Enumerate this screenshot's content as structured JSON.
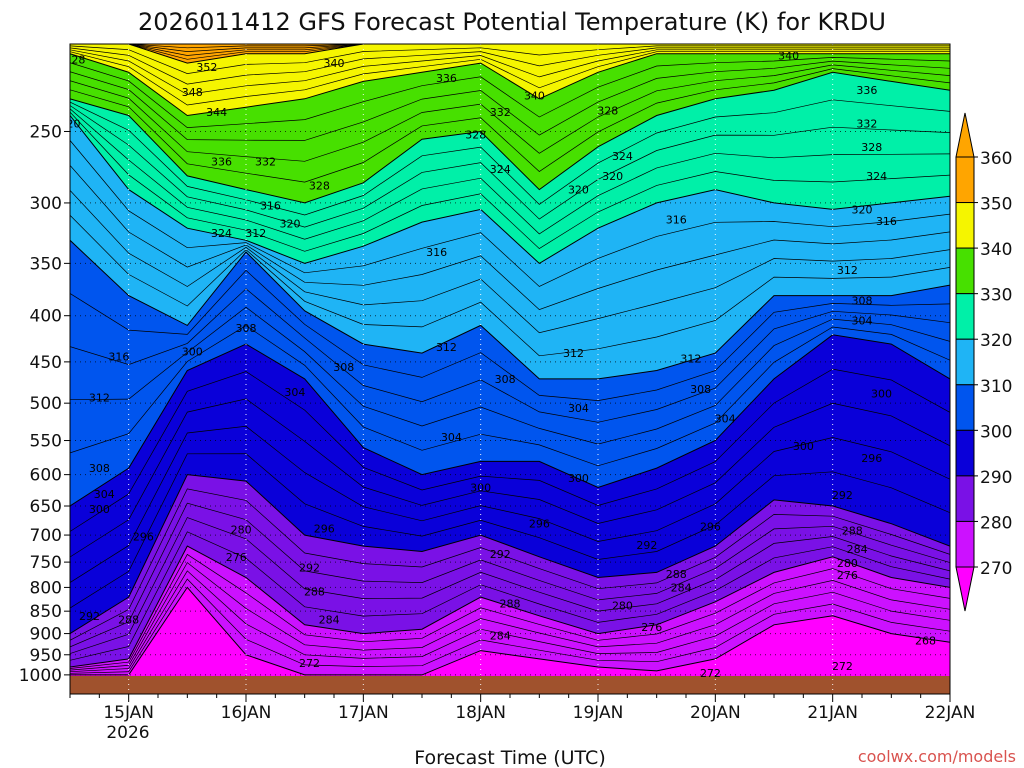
{
  "chart_data": {
    "type": "contour",
    "title": "2026011412 GFS Forecast Potential Temperature (K) for KRDU",
    "xlabel": "Forecast Time (UTC)",
    "ylabel": "",
    "credit": "coolwx.com/models",
    "pressure_ticks": [
      "250",
      "300",
      "350",
      "400",
      "450",
      "500",
      "550",
      "600",
      "650",
      "700",
      "750",
      "800",
      "850",
      "900",
      "950",
      "1000"
    ],
    "pressure_values": [
      250,
      300,
      350,
      400,
      450,
      500,
      550,
      600,
      650,
      700,
      750,
      800,
      850,
      900,
      950,
      1000
    ],
    "time_ticks": [
      "15JAN",
      "16JAN",
      "17JAN",
      "18JAN",
      "19JAN",
      "20JAN",
      "21JAN",
      "22JAN"
    ],
    "time_values_hours": [
      12,
      36,
      60,
      84,
      108,
      132,
      156,
      180
    ],
    "time_start_hour": 0,
    "time_end_hour": 180,
    "year_label": "2026",
    "colorbar_labels": [
      "270",
      "280",
      "290",
      "300",
      "310",
      "320",
      "330",
      "340",
      "350",
      "360"
    ],
    "colorbar_levels": [
      270,
      280,
      290,
      300,
      310,
      320,
      330,
      340,
      350,
      360
    ],
    "colorbar_colors": [
      "#ff00ff",
      "#cc11ff",
      "#7a11e6",
      "#0a00d9",
      "#0055ee",
      "#1fb4f5",
      "#00f0a8",
      "#47e000",
      "#f5f500",
      "#ffa500"
    ],
    "color_bands": [
      {
        "level": 360,
        "color": "#ffa500",
        "press": [
          200,
          200,
          200,
          200,
          200,
          200,
          200,
          200,
          200,
          200,
          200,
          200,
          200,
          200,
          200,
          200
        ]
      },
      {
        "level": 350,
        "color": "#f5f500",
        "press": [
          200,
          200,
          210,
          205,
          205,
          200,
          200,
          200,
          200,
          200,
          200,
          200,
          200,
          200,
          200,
          200
        ]
      },
      {
        "level": 340,
        "color": "#47e000",
        "press": [
          205,
          215,
          240,
          235,
          230,
          220,
          215,
          210,
          230,
          215,
          205,
          205,
          205,
          205,
          205,
          205
        ]
      },
      {
        "level": 330,
        "color": "#00f0a8",
        "press": [
          230,
          240,
          280,
          290,
          300,
          285,
          255,
          250,
          290,
          260,
          240,
          230,
          225,
          215,
          220,
          225
        ]
      },
      {
        "level": 320,
        "color": "#1fb4f5",
        "press": [
          240,
          290,
          320,
          330,
          350,
          335,
          315,
          305,
          350,
          320,
          300,
          290,
          300,
          305,
          300,
          295
        ]
      },
      {
        "level": 310,
        "color": "#0055ee",
        "press": [
          330,
          380,
          410,
          340,
          395,
          430,
          440,
          410,
          470,
          470,
          460,
          440,
          380,
          380,
          380,
          370
        ]
      },
      {
        "level": 300,
        "color": "#0a00d9",
        "press": [
          650,
          590,
          460,
          430,
          470,
          560,
          600,
          580,
          580,
          620,
          590,
          550,
          470,
          420,
          430,
          470
        ]
      },
      {
        "level": 290,
        "color": "#7a11e6",
        "press": [
          900,
          820,
          600,
          610,
          700,
          720,
          730,
          700,
          740,
          780,
          770,
          720,
          640,
          650,
          680,
          720
        ]
      },
      {
        "level": 280,
        "color": "#cc11ff",
        "press": [
          980,
          960,
          720,
          780,
          880,
          900,
          890,
          820,
          860,
          900,
          880,
          830,
          770,
          740,
          780,
          800
        ]
      },
      {
        "level": 270,
        "color": "#ff00ff",
        "press": [
          1000,
          1000,
          800,
          950,
          1000,
          1000,
          1000,
          940,
          960,
          980,
          990,
          960,
          880,
          860,
          900,
          920
        ]
      }
    ],
    "contour_labels": [
      {
        "text": "328",
        "t": 1,
        "p": 208
      },
      {
        "text": "352",
        "t": 28,
        "p": 212
      },
      {
        "text": "348",
        "t": 25,
        "p": 226
      },
      {
        "text": "344",
        "t": 30,
        "p": 238
      },
      {
        "text": "340",
        "t": 54,
        "p": 210
      },
      {
        "text": "336",
        "t": 77,
        "p": 218
      },
      {
        "text": "332",
        "t": 88,
        "p": 238
      },
      {
        "text": "340",
        "t": 95,
        "p": 228
      },
      {
        "text": "328",
        "t": 83,
        "p": 252
      },
      {
        "text": "328",
        "t": 110,
        "p": 237
      },
      {
        "text": "324",
        "t": 113,
        "p": 266
      },
      {
        "text": "320",
        "t": 111,
        "p": 280
      },
      {
        "text": "340",
        "t": 147,
        "p": 206
      },
      {
        "text": "336",
        "t": 163,
        "p": 225
      },
      {
        "text": "332",
        "t": 163,
        "p": 245
      },
      {
        "text": "328",
        "t": 164,
        "p": 260
      },
      {
        "text": "324",
        "t": 165,
        "p": 280
      },
      {
        "text": "320",
        "t": 0,
        "p": 245
      },
      {
        "text": "336",
        "t": 31,
        "p": 270
      },
      {
        "text": "332",
        "t": 40,
        "p": 270
      },
      {
        "text": "328",
        "t": 51,
        "p": 287
      },
      {
        "text": "324",
        "t": 88,
        "p": 275
      },
      {
        "text": "320",
        "t": 104,
        "p": 290
      },
      {
        "text": "316",
        "t": 41,
        "p": 302
      },
      {
        "text": "320",
        "t": 45,
        "p": 316
      },
      {
        "text": "324",
        "t": 31,
        "p": 324
      },
      {
        "text": "312",
        "t": 38,
        "p": 324
      },
      {
        "text": "316",
        "t": 75,
        "p": 340
      },
      {
        "text": "316",
        "t": 124,
        "p": 313
      },
      {
        "text": "320",
        "t": 162,
        "p": 305
      },
      {
        "text": "316",
        "t": 167,
        "p": 314
      },
      {
        "text": "312",
        "t": 159,
        "p": 356
      },
      {
        "text": "308",
        "t": 36,
        "p": 413
      },
      {
        "text": "312",
        "t": 77,
        "p": 433
      },
      {
        "text": "312",
        "t": 103,
        "p": 440
      },
      {
        "text": "308",
        "t": 56,
        "p": 456
      },
      {
        "text": "308",
        "t": 89,
        "p": 470
      },
      {
        "text": "312",
        "t": 127,
        "p": 446
      },
      {
        "text": "316",
        "t": 10,
        "p": 444
      },
      {
        "text": "300",
        "t": 25,
        "p": 438
      },
      {
        "text": "308",
        "t": 162,
        "p": 385
      },
      {
        "text": "304",
        "t": 162,
        "p": 405
      },
      {
        "text": "312",
        "t": 6,
        "p": 493
      },
      {
        "text": "304",
        "t": 46,
        "p": 486
      },
      {
        "text": "304",
        "t": 104,
        "p": 506
      },
      {
        "text": "308",
        "t": 129,
        "p": 482
      },
      {
        "text": "304",
        "t": 134,
        "p": 520
      },
      {
        "text": "304",
        "t": 78,
        "p": 545
      },
      {
        "text": "300",
        "t": 150,
        "p": 558
      },
      {
        "text": "296",
        "t": 164,
        "p": 575
      },
      {
        "text": "300",
        "t": 166,
        "p": 488
      },
      {
        "text": "308",
        "t": 6,
        "p": 590
      },
      {
        "text": "304",
        "t": 7,
        "p": 630
      },
      {
        "text": "300",
        "t": 6,
        "p": 655
      },
      {
        "text": "300",
        "t": 84,
        "p": 620
      },
      {
        "text": "300",
        "t": 104,
        "p": 605
      },
      {
        "text": "292",
        "t": 158,
        "p": 632
      },
      {
        "text": "296",
        "t": 15,
        "p": 703
      },
      {
        "text": "280",
        "t": 35,
        "p": 690
      },
      {
        "text": "296",
        "t": 52,
        "p": 688
      },
      {
        "text": "296",
        "t": 96,
        "p": 680
      },
      {
        "text": "296",
        "t": 131,
        "p": 685
      },
      {
        "text": "288",
        "t": 160,
        "p": 692
      },
      {
        "text": "284",
        "t": 161,
        "p": 725
      },
      {
        "text": "276",
        "t": 34,
        "p": 740
      },
      {
        "text": "292",
        "t": 49,
        "p": 760
      },
      {
        "text": "292",
        "t": 88,
        "p": 735
      },
      {
        "text": "292",
        "t": 118,
        "p": 718
      },
      {
        "text": "280",
        "t": 159,
        "p": 752
      },
      {
        "text": "276",
        "t": 159,
        "p": 775
      },
      {
        "text": "288",
        "t": 50,
        "p": 808
      },
      {
        "text": "288",
        "t": 124,
        "p": 773
      },
      {
        "text": "284",
        "t": 125,
        "p": 800
      },
      {
        "text": "288",
        "t": 12,
        "p": 868
      },
      {
        "text": "292",
        "t": 4,
        "p": 860
      },
      {
        "text": "288",
        "t": 90,
        "p": 834
      },
      {
        "text": "280",
        "t": 113,
        "p": 838
      },
      {
        "text": "284",
        "t": 53,
        "p": 868
      },
      {
        "text": "276",
        "t": 119,
        "p": 885
      },
      {
        "text": "284",
        "t": 88,
        "p": 904
      },
      {
        "text": "268",
        "t": 175,
        "p": 916
      },
      {
        "text": "272",
        "t": 49,
        "p": 970
      },
      {
        "text": "272",
        "t": 158,
        "p": 978
      },
      {
        "text": "272",
        "t": 131,
        "p": 995
      }
    ]
  }
}
